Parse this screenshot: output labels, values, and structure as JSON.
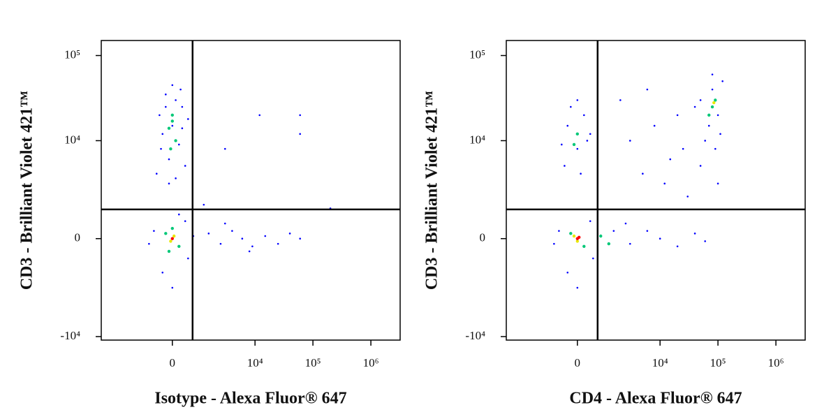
{
  "chart_data": [
    {
      "type": "scatter",
      "xlabel": "Isotype - Alexa Fluor® 647",
      "ylabel": "CD3 - Brilliant Violet 421™",
      "xlim": [
        -6300,
        3200000
      ],
      "ylim": [
        -11000,
        150000
      ],
      "xticks": [
        {
          "value": 0,
          "label": "0"
        },
        {
          "value": 10000,
          "label": "10⁴"
        },
        {
          "value": 100000,
          "label": "10⁵"
        },
        {
          "value": 1000000,
          "label": "10⁶"
        }
      ],
      "yticks": [
        {
          "value": -10000,
          "label": "-10⁴"
        },
        {
          "value": 0,
          "label": "0"
        },
        {
          "value": 10000,
          "label": "10⁴"
        },
        {
          "value": 100000,
          "label": "10⁵"
        }
      ],
      "gates": {
        "x": 670,
        "y": 1250
      },
      "series": [
        {
          "color": "#0000ff",
          "x": [
            -400,
            -200,
            100,
            300,
            -300,
            0,
            200,
            -100,
            400,
            -500,
            100,
            -200,
            300,
            -350,
            250,
            0,
            -100,
            500,
            -600,
            500,
            -300,
            400,
            -800,
            200,
            0,
            700,
            1500,
            2500,
            4000,
            6000,
            9000,
            15000,
            25000,
            40000,
            60000,
            8000,
            3000,
            12000,
            60000,
            60000,
            3000,
            1200,
            200000
          ],
          "values": [
            20000,
            35000,
            30000,
            25000,
            12000,
            15000,
            9000,
            6000,
            5000,
            4000,
            3500,
            25000,
            14000,
            8000,
            40000,
            45000,
            3000,
            18000,
            300,
            -800,
            -1500,
            700,
            -200,
            1000,
            -2500,
            100,
            200,
            -200,
            300,
            0,
            -300,
            100,
            -200,
            200,
            0,
            -500,
            600,
            20000,
            20000,
            12000,
            8000,
            1500,
            1300
          ]
        },
        {
          "color": "#00c878",
          "x": [
            0,
            -100,
            100,
            0,
            -50,
            -200,
            200,
            0,
            -100
          ],
          "values": [
            20000,
            14000,
            10000,
            17000,
            8000,
            200,
            -300,
            400,
            -500
          ]
        },
        {
          "color": "#e8e800",
          "x": [
            50,
            -50
          ],
          "values": [
            100,
            -100
          ]
        },
        {
          "color": "#ff0000",
          "x": [
            0
          ],
          "values": [
            0
          ]
        }
      ]
    },
    {
      "type": "scatter",
      "xlabel": "CD4 - Alexa Fluor® 647",
      "ylabel": "CD3 - Brilliant Violet 421™",
      "xlim": [
        -6300,
        3200000
      ],
      "ylim": [
        -11000,
        150000
      ],
      "xticks": [
        {
          "value": 0,
          "label": "0"
        },
        {
          "value": 10000,
          "label": "10⁴"
        },
        {
          "value": 100000,
          "label": "10⁵"
        },
        {
          "value": 1000000,
          "label": "10⁶"
        }
      ],
      "yticks": [
        {
          "value": -10000,
          "label": "-10⁴"
        },
        {
          "value": 0,
          "label": "0"
        },
        {
          "value": 10000,
          "label": "10⁴"
        },
        {
          "value": 100000,
          "label": "10⁵"
        }
      ],
      "gates": {
        "x": 670,
        "y": 1250
      },
      "series": [
        {
          "color": "#0000ff",
          "x": [
            50000,
            80000,
            100000,
            70000,
            120000,
            60000,
            90000,
            40000,
            110000,
            80000,
            50000,
            100000,
            -300,
            200,
            0,
            -400,
            300,
            -200,
            100,
            400,
            -500,
            0,
            3000,
            8000,
            15000,
            25000,
            5000,
            12000,
            30000,
            2000,
            6000,
            20000,
            -600,
            500,
            -300,
            400,
            -800,
            0,
            1500,
            3000,
            6000,
            10000,
            20000,
            40000,
            60000,
            2500
          ],
          "values": [
            30000,
            40000,
            20000,
            15000,
            50000,
            10000,
            8000,
            25000,
            12000,
            60000,
            5000,
            3000,
            15000,
            20000,
            8000,
            5000,
            10000,
            25000,
            4000,
            12000,
            9000,
            30000,
            10000,
            15000,
            6000,
            8000,
            4000,
            3000,
            2000,
            30000,
            40000,
            20000,
            300,
            -800,
            -1500,
            700,
            -200,
            -2500,
            300,
            -200,
            300,
            0,
            -300,
            200,
            -100,
            600
          ]
        },
        {
          "color": "#00c878",
          "x": [
            80000,
            90000,
            70000,
            0,
            -100,
            -200,
            200,
            800,
            1200
          ],
          "values": [
            25000,
            30000,
            20000,
            12000,
            9000,
            200,
            -300,
            100,
            -200
          ]
        },
        {
          "color": "#e8e800",
          "x": [
            85000,
            0,
            -100
          ],
          "values": [
            28000,
            -100,
            100
          ]
        },
        {
          "color": "#ff0000",
          "x": [
            0,
            50
          ],
          "values": [
            0,
            50
          ]
        }
      ]
    }
  ]
}
